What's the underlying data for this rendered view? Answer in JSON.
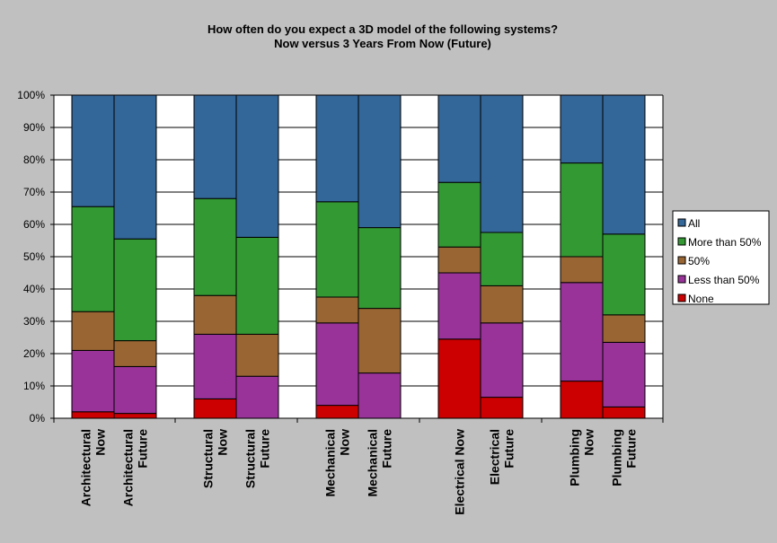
{
  "chart_data": {
    "type": "bar",
    "stacked": true,
    "percent": true,
    "title": [
      "How often do you expect a 3D model of the following systems?",
      "Now versus 3 Years From Now (Future)"
    ],
    "categories": [
      [
        "Architectural",
        "Now"
      ],
      [
        "Architectural",
        "Future"
      ],
      [
        "Structural",
        "Now"
      ],
      [
        "Structural",
        "Future"
      ],
      [
        "Mechanical",
        "Now"
      ],
      [
        "Mechanical",
        "Future"
      ],
      [
        "Electrical Now"
      ],
      [
        "Electrical",
        "Future"
      ],
      [
        "Plumbing",
        "Now"
      ],
      [
        "Plumbing",
        "Future"
      ]
    ],
    "groups": [
      [
        0,
        1
      ],
      [
        2,
        3
      ],
      [
        4,
        5
      ],
      [
        6,
        7
      ],
      [
        8,
        9
      ]
    ],
    "ylim": [
      0,
      100
    ],
    "yticks": [
      "0%",
      "10%",
      "20%",
      "30%",
      "40%",
      "50%",
      "60%",
      "70%",
      "80%",
      "90%",
      "100%"
    ],
    "grid": true,
    "legend_position": "right",
    "series": [
      {
        "name": "None",
        "color": "#cc0000",
        "values": [
          2,
          1.5,
          6,
          0,
          4,
          0,
          24.5,
          6.5,
          11.5,
          3.5
        ]
      },
      {
        "name": "Less than 50%",
        "color": "#993399",
        "values": [
          19,
          14.5,
          20,
          13,
          25.5,
          14,
          20.5,
          23,
          30.5,
          20
        ]
      },
      {
        "name": "50%",
        "color": "#996633",
        "values": [
          12,
          8,
          12,
          13,
          8,
          20,
          8,
          11.5,
          8,
          8.5
        ]
      },
      {
        "name": "More than 50%",
        "color": "#339933",
        "values": [
          32.5,
          31.5,
          30,
          30,
          29.5,
          25,
          20,
          16.5,
          29,
          25
        ]
      },
      {
        "name": "All",
        "color": "#336699",
        "values": [
          34.5,
          44.5,
          32,
          44,
          33,
          41,
          27,
          42.5,
          21,
          43
        ]
      }
    ],
    "legend_order": [
      "All",
      "More than 50%",
      "50%",
      "Less than 50%",
      "None"
    ]
  }
}
